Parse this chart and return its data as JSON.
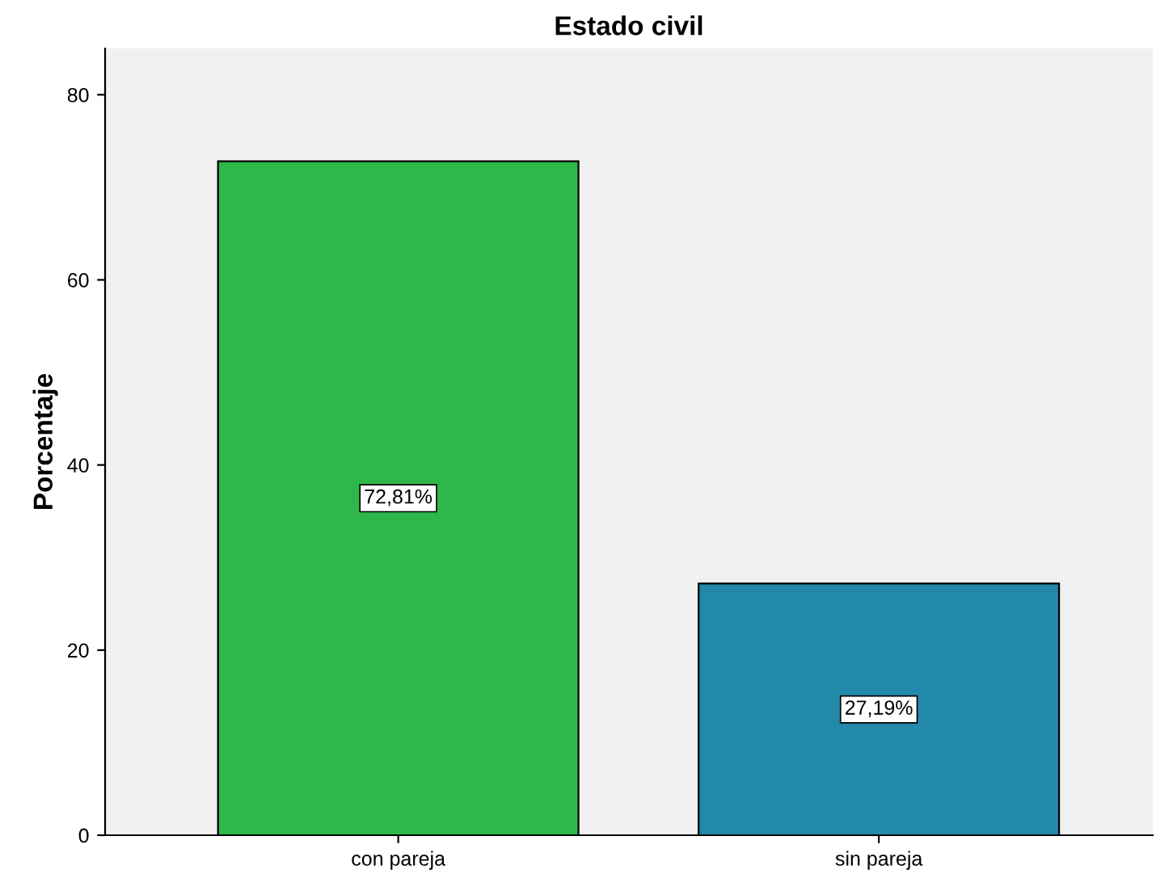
{
  "chart_data": {
    "type": "bar",
    "title": "Estado civil",
    "ylabel": "Porcentaje",
    "categories": [
      "con pareja",
      "sin pareja"
    ],
    "values": [
      72.81,
      27.19
    ],
    "colors": [
      "#2eb84b",
      "#2389aa"
    ],
    "value_labels": [
      "72,81%",
      "27,19%"
    ],
    "ylim": [
      0,
      85
    ],
    "yticks": [
      0,
      20,
      40,
      60,
      80
    ],
    "grid": false,
    "legend": false
  }
}
